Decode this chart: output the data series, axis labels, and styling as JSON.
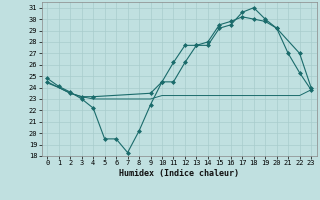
{
  "xlabel": "Humidex (Indice chaleur)",
  "bg_color": "#c0e0e0",
  "grid_color": "#b0d0d0",
  "line_color": "#1a6b6b",
  "xlim": [
    -0.5,
    23.5
  ],
  "ylim": [
    18,
    31.5
  ],
  "yticks": [
    18,
    19,
    20,
    21,
    22,
    23,
    24,
    25,
    26,
    27,
    28,
    29,
    30,
    31
  ],
  "xticks": [
    0,
    1,
    2,
    3,
    4,
    5,
    6,
    7,
    8,
    9,
    10,
    11,
    12,
    13,
    14,
    15,
    16,
    17,
    18,
    19,
    20,
    21,
    22,
    23
  ],
  "line1_x": [
    0,
    1,
    2,
    3,
    4,
    5,
    6,
    7,
    8,
    9,
    10,
    11,
    12,
    13,
    14,
    15,
    16,
    17,
    18,
    19,
    20,
    21,
    22,
    23
  ],
  "line1_y": [
    24.8,
    24.1,
    23.6,
    23.0,
    22.2,
    19.5,
    19.5,
    18.3,
    20.2,
    22.5,
    24.5,
    24.5,
    26.2,
    27.7,
    27.7,
    29.2,
    29.5,
    30.6,
    31.0,
    30.0,
    29.2,
    27.0,
    25.3,
    23.8
  ],
  "line2_x": [
    0,
    1,
    2,
    3,
    4,
    5,
    6,
    7,
    8,
    9,
    10,
    11,
    12,
    13,
    14,
    15,
    16,
    17,
    18,
    19,
    20,
    21,
    22,
    23
  ],
  "line2_y": [
    24.4,
    24.0,
    23.5,
    23.2,
    23.0,
    23.0,
    23.0,
    23.0,
    23.0,
    23.0,
    23.3,
    23.3,
    23.3,
    23.3,
    23.3,
    23.3,
    23.3,
    23.3,
    23.3,
    23.3,
    23.3,
    23.3,
    23.3,
    23.8
  ],
  "line3_x": [
    0,
    2,
    3,
    4,
    9,
    10,
    11,
    12,
    13,
    14,
    15,
    16,
    17,
    18,
    19,
    20,
    22,
    23
  ],
  "line3_y": [
    24.5,
    23.5,
    23.2,
    23.2,
    23.5,
    24.5,
    26.2,
    27.7,
    27.7,
    28.0,
    29.5,
    29.8,
    30.2,
    30.0,
    29.8,
    29.2,
    27.0,
    24.0
  ]
}
